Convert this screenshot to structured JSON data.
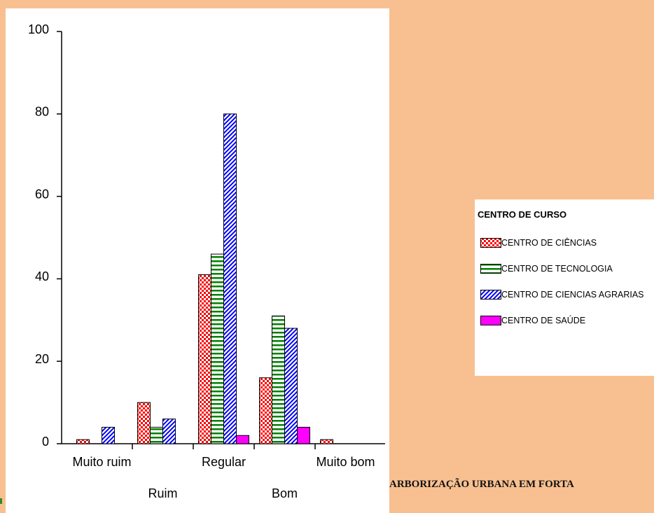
{
  "chart_data": {
    "type": "bar",
    "categories": [
      "Muito ruim",
      "Ruim",
      "Regular",
      "Bom",
      "Muito bom"
    ],
    "series": [
      {
        "name": "CENTRO DE CIÊNCIAS",
        "color": "#ff0000",
        "values": [
          1,
          10,
          41,
          16,
          1
        ]
      },
      {
        "name": "CENTRO DE TECNOLOGIA",
        "color": "#008000",
        "values": [
          0,
          4,
          46,
          31,
          0
        ]
      },
      {
        "name": "CENTRO DE CIENCIAS AGRARIAS",
        "color": "#0000ff",
        "values": [
          4,
          6,
          80,
          28,
          0
        ]
      },
      {
        "name": "CENTRO DE SAÚDE",
        "color": "#ff00ff",
        "values": [
          0,
          0,
          2,
          4,
          0
        ]
      }
    ],
    "legend_title": "CENTRO DE CURSO",
    "ylim": [
      0,
      100
    ],
    "yticks": [
      0,
      20,
      40,
      60,
      80,
      100
    ],
    "grid": false,
    "footer_text": "ARBORIZAÇÃO URBANA EM FORTA"
  }
}
